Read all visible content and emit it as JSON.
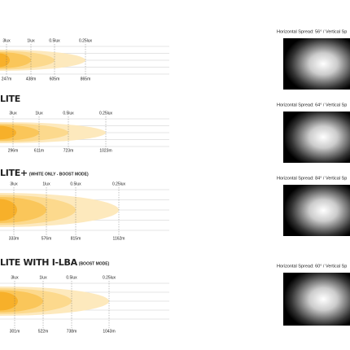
{
  "sections": [
    {
      "title": null,
      "subtitle": null,
      "spread": "Horizontal Spread: 56° / Vertical Sp",
      "lux": [
        "3lux",
        "1lux",
        "0.5lux",
        "0.25lux"
      ],
      "distances": [
        "247m",
        "438m",
        "605m",
        "865m"
      ]
    },
    {
      "title": "LITE",
      "subtitle": null,
      "spread": "Horizontal Spread: 64° / Vertical Sp",
      "lux": [
        "3lux",
        "1lux",
        "0.5lux",
        "0.25lux"
      ],
      "distances": [
        "296m",
        "611m",
        "723m",
        "1023m"
      ]
    },
    {
      "title": "LITE+",
      "subtitle": "(WHITE ONLY - BOOST MODE)",
      "spread": "Horizontal Spread: 84° / Vertical Sp",
      "lux": [
        "3lux",
        "1lux",
        "0.5lux",
        "0.25lux"
      ],
      "distances": [
        "333m",
        "576m",
        "815m",
        "1162m"
      ]
    },
    {
      "title": "LITE WITH I-LBA",
      "subtitle": "(BOOST MODE)",
      "spread": "Horizontal Spread: 60° / Vertical Sp",
      "lux": [
        "3lux",
        "1lux",
        "0.5lux",
        "0.25lux"
      ],
      "distances": [
        "301m",
        "522m",
        "738m",
        "1043m"
      ]
    }
  ]
}
